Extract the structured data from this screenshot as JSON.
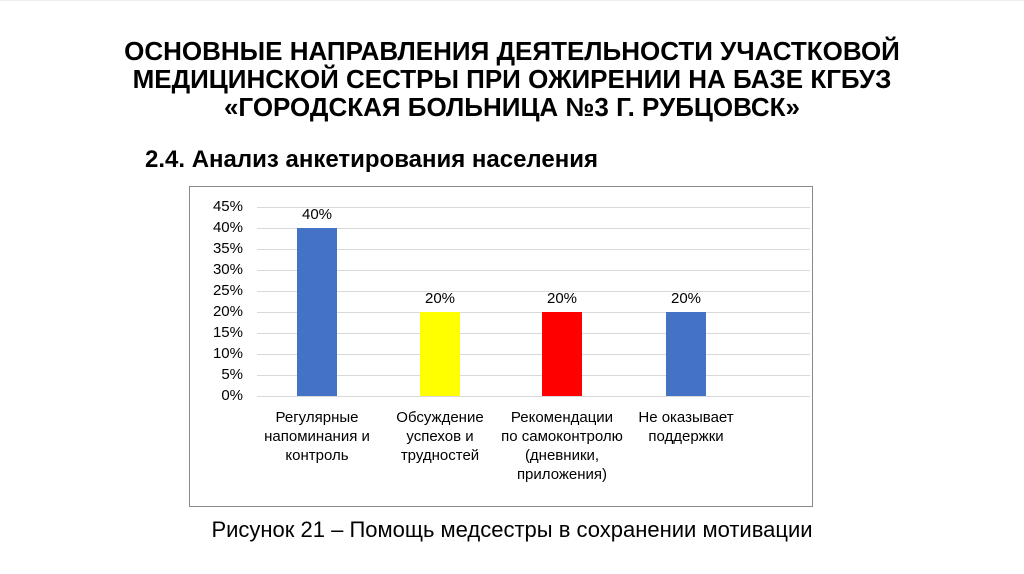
{
  "slide": {
    "title_lines": [
      "ОСНОВНЫЕ НАПРАВЛЕНИЯ ДЕЯТЕЛЬНОСТИ УЧАСТКОВОЙ",
      "МЕДИЦИНСКОЙ СЕСТРЫ ПРИ ОЖИРЕНИИ НА БАЗЕ КГБУЗ",
      "«ГОРОДСКАЯ БОЛЬНИЦА №3 Г. РУБЦОВСК»"
    ],
    "subtitle": "2.4. Анализ анкетирования населения",
    "caption": "Рисунок 21 – Помощь медсестры в сохранении мотивации"
  },
  "chart_data": {
    "type": "bar",
    "categories": [
      "Регулярные\nнапоминания и\nконтроль",
      "Обсуждение\nуспехов и\nтрудностей",
      "Рекомендации\nпо самоконтролю\n(дневники,\nприложения)",
      "Не оказывает\nподдержки"
    ],
    "values": [
      40,
      20,
      20,
      20
    ],
    "data_labels": [
      "40%",
      "20%",
      "20%",
      "20%"
    ],
    "bar_colors": [
      "#4472c4",
      "#ffff00",
      "#ff0000",
      "#4472c4"
    ],
    "y_ticks": [
      "45%",
      "40%",
      "35%",
      "30%",
      "25%",
      "20%",
      "15%",
      "10%",
      "5%",
      "0%"
    ],
    "y_tick_values": [
      45,
      40,
      35,
      30,
      25,
      20,
      15,
      10,
      5,
      0
    ],
    "ylim": [
      0,
      45
    ],
    "grid": true,
    "gridline_color": "#d9d9d9",
    "frame_border_color": "#8a8a8a",
    "title": "",
    "xlabel": "",
    "ylabel": ""
  }
}
